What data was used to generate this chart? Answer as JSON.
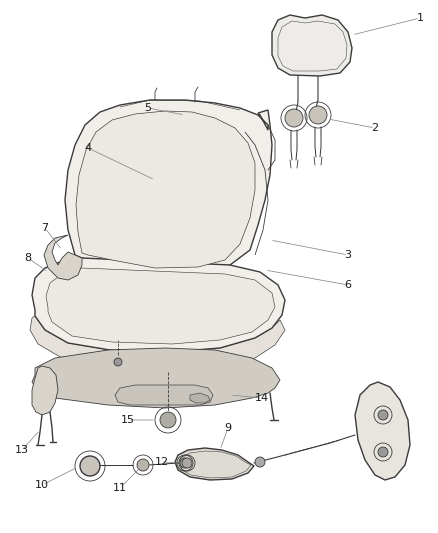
{
  "bg_color": "#ffffff",
  "line_color": "#3a3a3a",
  "label_color": "#1a1a1a",
  "fig_width": 4.38,
  "fig_height": 5.33,
  "dpi": 100,
  "seat_fill": "#f2efea",
  "seat_fill2": "#ece8e2",
  "seat_fill3": "#e5e1da",
  "seat_dark": "#d8d4cc",
  "headrest_fill": "#eeece8",
  "panel_fill": "#e8e4de",
  "armpad_fill": "#dedad4"
}
